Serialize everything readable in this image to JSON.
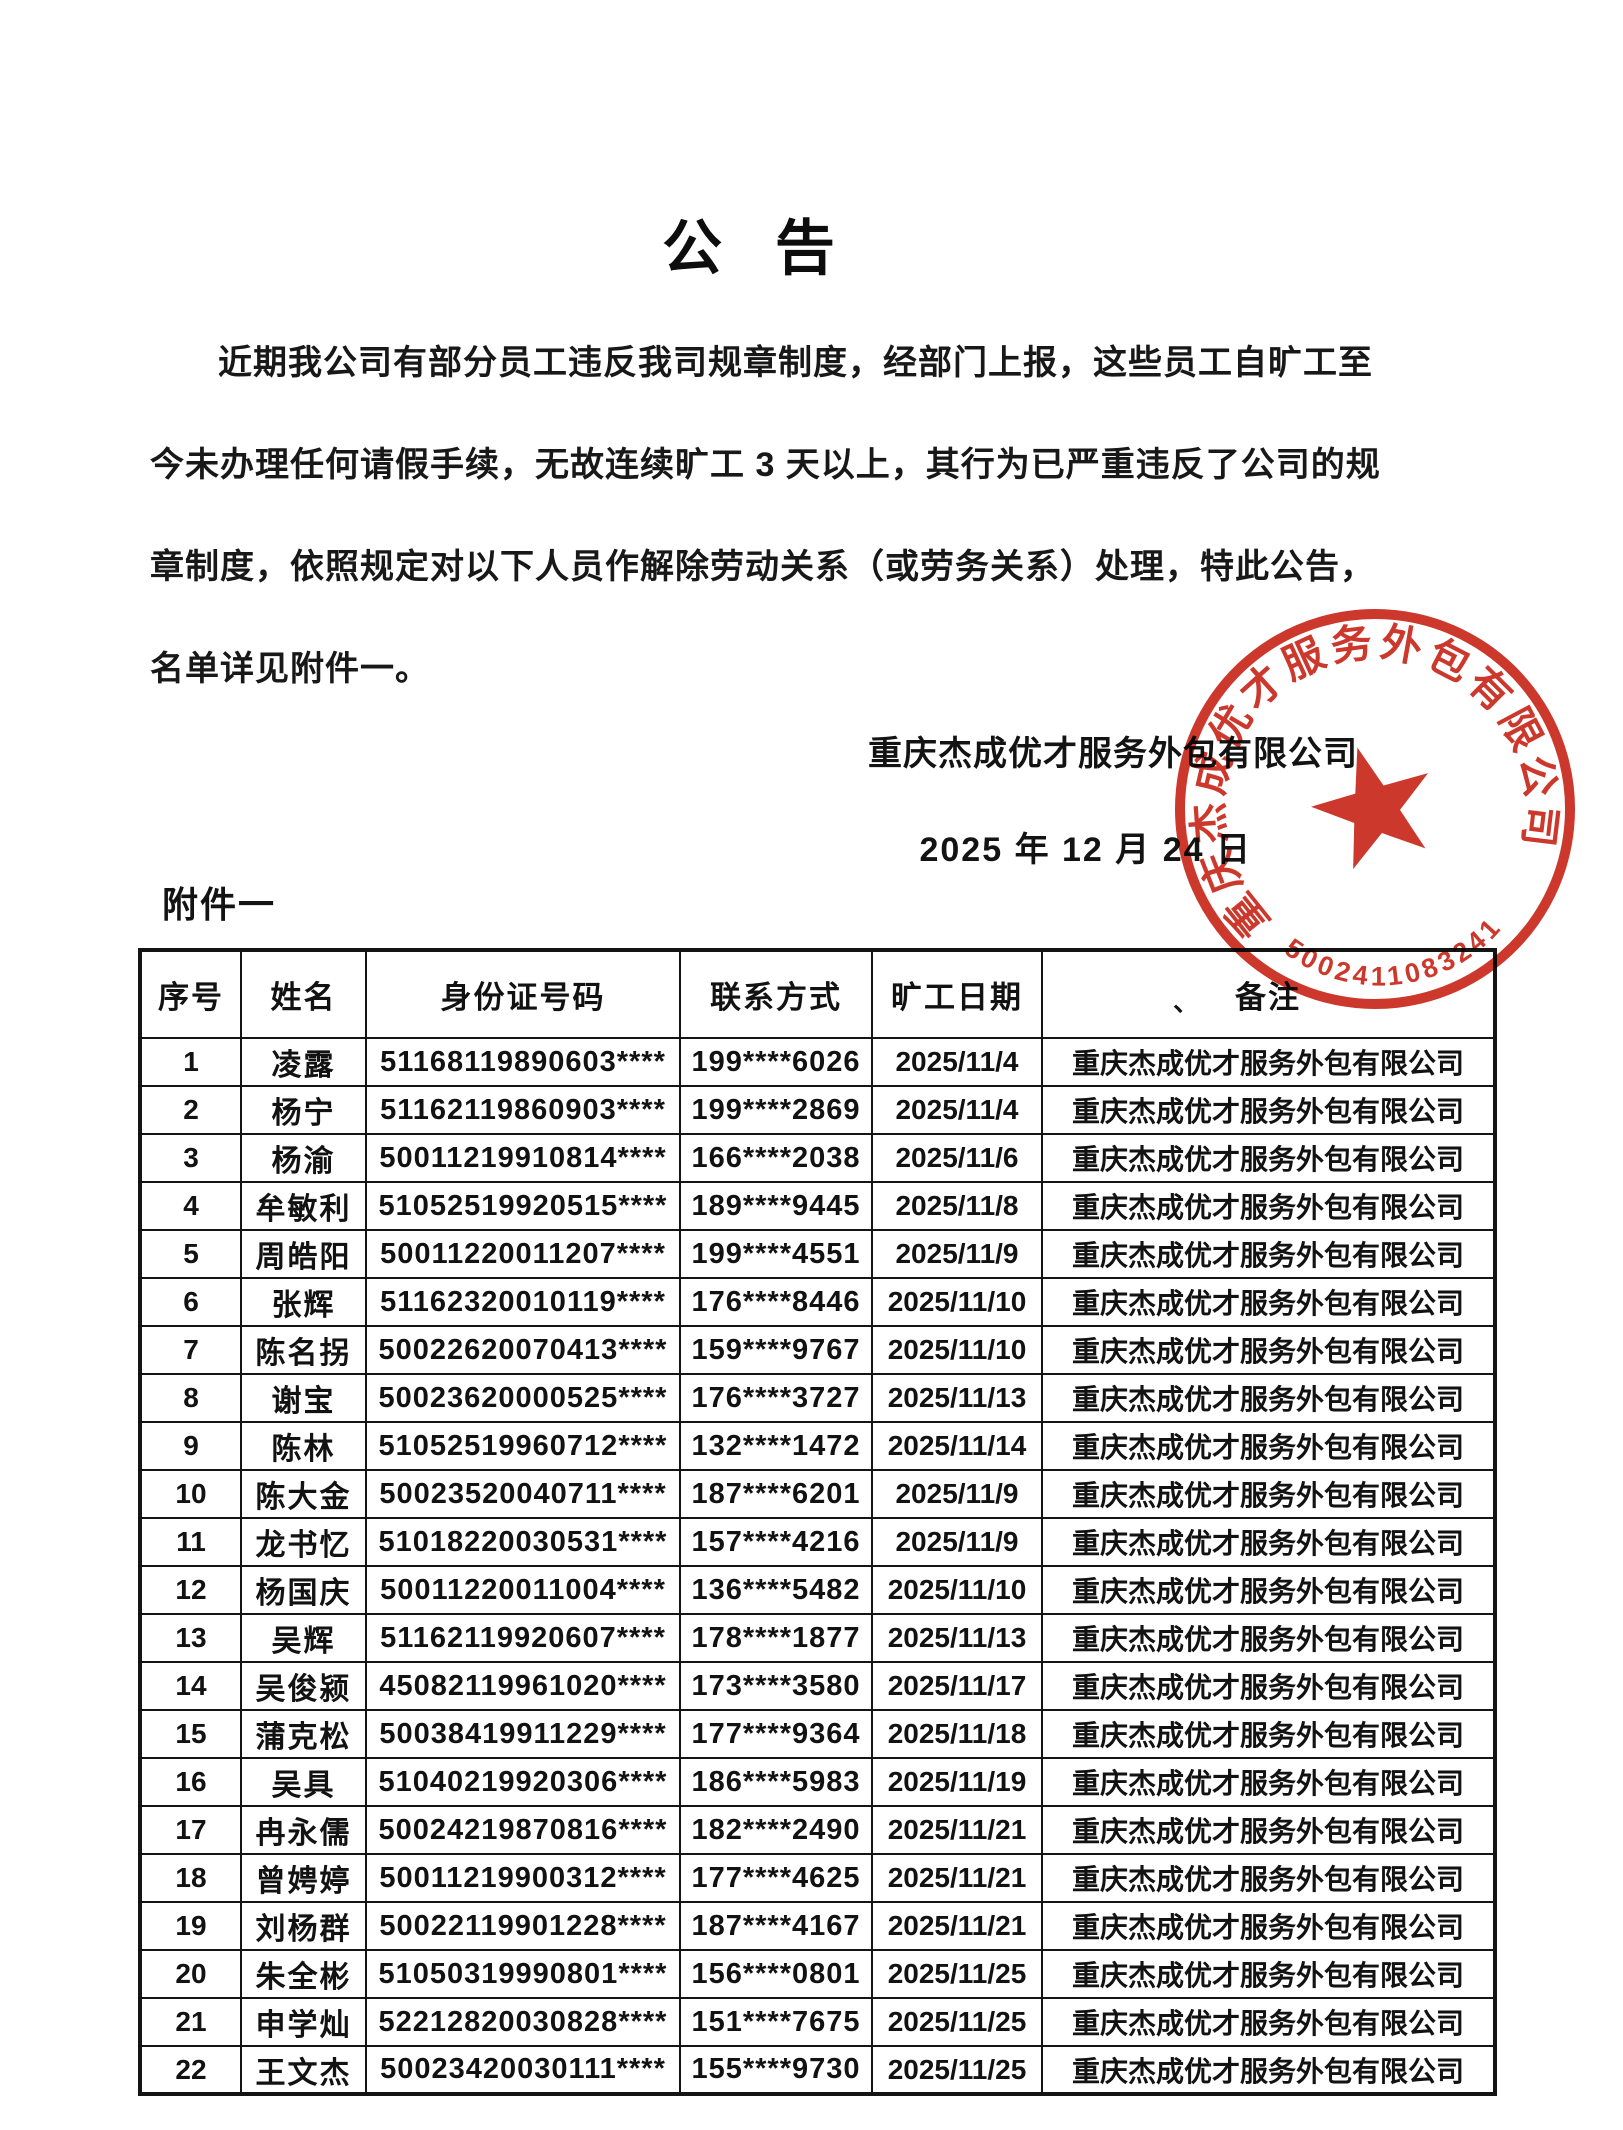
{
  "document": {
    "title": "公  告",
    "paragraph_lines": [
      "近期我公司有部分员工违反我司规章制度，经部门上报，这些员工自旷工至",
      "今未办理任何请假手续，无故连续旷工 3 天以上，其行为已严重违反了公司的规",
      "章制度，依照规定对以下人员作解除劳动关系（或劳务关系）处理，特此公告，",
      "名单详见附件一。"
    ],
    "signature": "重庆杰成优才服务外包有限公司",
    "date": "2025 年 12 月 24 日",
    "attachment_label": "附件一"
  },
  "stamp": {
    "ring_text": "重庆杰成优才服务外包有限公司",
    "serial_number": "5002411083241",
    "color": "#c9271b"
  },
  "table": {
    "headers": [
      "序号",
      "姓名",
      "身份证号码",
      "联系方式",
      "旷工日期",
      "备注"
    ],
    "header_mark": "、",
    "rows": [
      [
        "1",
        "凌露",
        "51168119890603****",
        "199****6026",
        "2025/11/4",
        "重庆杰成优才服务外包有限公司"
      ],
      [
        "2",
        "杨宁",
        "51162119860903****",
        "199****2869",
        "2025/11/4",
        "重庆杰成优才服务外包有限公司"
      ],
      [
        "3",
        "杨渝",
        "50011219910814****",
        "166****2038",
        "2025/11/6",
        "重庆杰成优才服务外包有限公司"
      ],
      [
        "4",
        "牟敏利",
        "51052519920515****",
        "189****9445",
        "2025/11/8",
        "重庆杰成优才服务外包有限公司"
      ],
      [
        "5",
        "周皓阳",
        "50011220011207****",
        "199****4551",
        "2025/11/9",
        "重庆杰成优才服务外包有限公司"
      ],
      [
        "6",
        "张辉",
        "51162320010119****",
        "176****8446",
        "2025/11/10",
        "重庆杰成优才服务外包有限公司"
      ],
      [
        "7",
        "陈名拐",
        "50022620070413****",
        "159****9767",
        "2025/11/10",
        "重庆杰成优才服务外包有限公司"
      ],
      [
        "8",
        "谢宝",
        "50023620000525****",
        "176****3727",
        "2025/11/13",
        "重庆杰成优才服务外包有限公司"
      ],
      [
        "9",
        "陈林",
        "51052519960712****",
        "132****1472",
        "2025/11/14",
        "重庆杰成优才服务外包有限公司"
      ],
      [
        "10",
        "陈大金",
        "50023520040711****",
        "187****6201",
        "2025/11/9",
        "重庆杰成优才服务外包有限公司"
      ],
      [
        "11",
        "龙书忆",
        "51018220030531****",
        "157****4216",
        "2025/11/9",
        "重庆杰成优才服务外包有限公司"
      ],
      [
        "12",
        "杨国庆",
        "50011220011004****",
        "136****5482",
        "2025/11/10",
        "重庆杰成优才服务外包有限公司"
      ],
      [
        "13",
        "吴辉",
        "51162119920607****",
        "178****1877",
        "2025/11/13",
        "重庆杰成优才服务外包有限公司"
      ],
      [
        "14",
        "吴俊颍",
        "45082119961020****",
        "173****3580",
        "2025/11/17",
        "重庆杰成优才服务外包有限公司"
      ],
      [
        "15",
        "蒲克松",
        "50038419911229****",
        "177****9364",
        "2025/11/18",
        "重庆杰成优才服务外包有限公司"
      ],
      [
        "16",
        "吴具",
        "51040219920306****",
        "186****5983",
        "2025/11/19",
        "重庆杰成优才服务外包有限公司"
      ],
      [
        "17",
        "冉永儒",
        "50024219870816****",
        "182****2490",
        "2025/11/21",
        "重庆杰成优才服务外包有限公司"
      ],
      [
        "18",
        "曾娉婷",
        "50011219900312****",
        "177****4625",
        "2025/11/21",
        "重庆杰成优才服务外包有限公司"
      ],
      [
        "19",
        "刘杨群",
        "50022119901228****",
        "187****4167",
        "2025/11/21",
        "重庆杰成优才服务外包有限公司"
      ],
      [
        "20",
        "朱全彬",
        "51050319990801****",
        "156****0801",
        "2025/11/25",
        "重庆杰成优才服务外包有限公司"
      ],
      [
        "21",
        "申学灿",
        "52212820030828****",
        "151****7675",
        "2025/11/25",
        "重庆杰成优才服务外包有限公司"
      ],
      [
        "22",
        "王文杰",
        "50023420030111****",
        "155****9730",
        "2025/11/25",
        "重庆杰成优才服务外包有限公司"
      ]
    ]
  }
}
